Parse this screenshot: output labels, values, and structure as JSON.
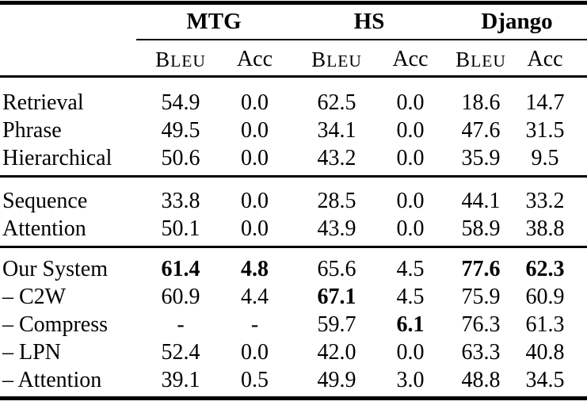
{
  "page": {
    "background_color": "#ffffff",
    "text_color": "#000000",
    "rule_color": "#000000"
  },
  "table": {
    "groups": [
      {
        "label": "MTG"
      },
      {
        "label": "HS"
      },
      {
        "label": "Django"
      }
    ],
    "sub_columns": [
      "BLEU",
      "Acc",
      "BLEU",
      "Acc",
      "BLEU",
      "Acc"
    ],
    "sections": [
      {
        "rows": [
          {
            "label": "Retrieval",
            "values": [
              "54.9",
              "0.0",
              "62.5",
              "0.0",
              "18.6",
              "14.7"
            ],
            "bold": []
          },
          {
            "label": "Phrase",
            "values": [
              "49.5",
              "0.0",
              "34.1",
              "0.0",
              "47.6",
              "31.5"
            ],
            "bold": []
          },
          {
            "label": "Hierarchical",
            "values": [
              "50.6",
              "0.0",
              "43.2",
              "0.0",
              "35.9",
              "9.5"
            ],
            "bold": []
          }
        ]
      },
      {
        "rows": [
          {
            "label": "Sequence",
            "values": [
              "33.8",
              "0.0",
              "28.5",
              "0.0",
              "44.1",
              "33.2"
            ],
            "bold": []
          },
          {
            "label": "Attention",
            "values": [
              "50.1",
              "0.0",
              "43.9",
              "0.0",
              "58.9",
              "38.8"
            ],
            "bold": []
          }
        ]
      },
      {
        "rows": [
          {
            "label": "Our System",
            "values": [
              "61.4",
              "4.8",
              "65.6",
              "4.5",
              "77.6",
              "62.3"
            ],
            "bold": [
              0,
              1,
              4,
              5
            ]
          },
          {
            "label": "– C2W",
            "values": [
              "60.9",
              "4.4",
              "67.1",
              "4.5",
              "75.9",
              "60.9"
            ],
            "bold": [
              2
            ]
          },
          {
            "label": "– Compress",
            "values": [
              "-",
              "-",
              "59.7",
              "6.1",
              "76.3",
              "61.3"
            ],
            "bold": [
              3
            ]
          },
          {
            "label": "– LPN",
            "values": [
              "52.4",
              "0.0",
              "42.0",
              "0.0",
              "63.3",
              "40.8"
            ],
            "bold": []
          },
          {
            "label": "– Attention",
            "values": [
              "39.1",
              "0.5",
              "49.9",
              "3.0",
              "48.8",
              "34.5"
            ],
            "bold": []
          }
        ]
      }
    ]
  }
}
